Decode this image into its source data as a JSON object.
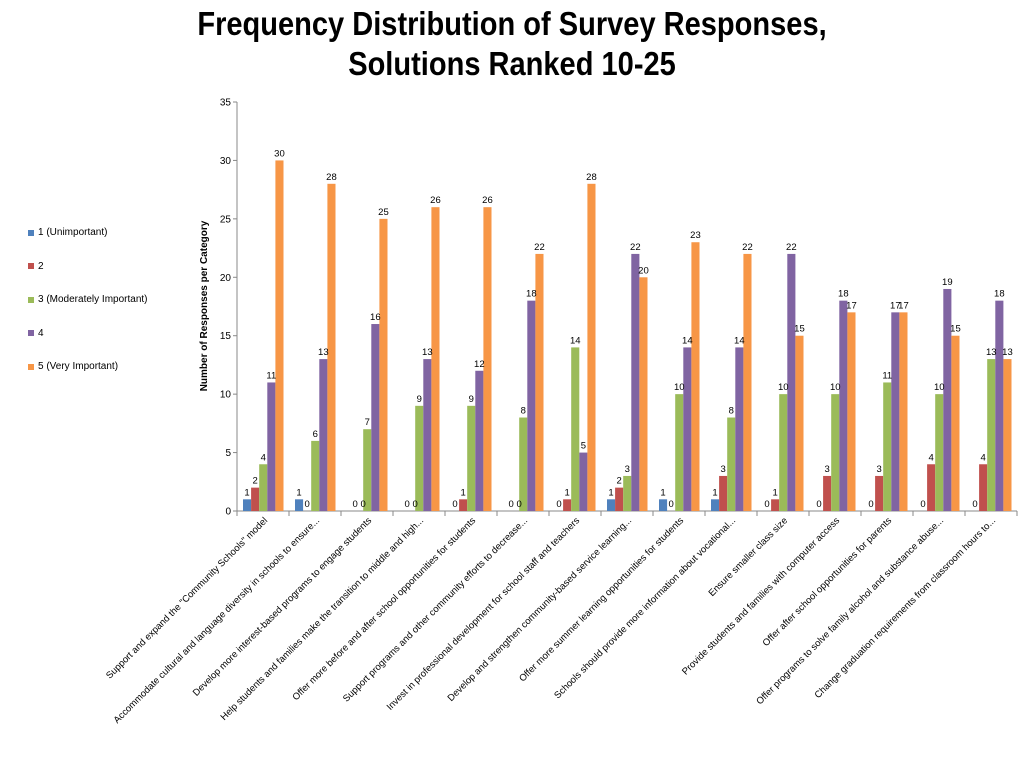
{
  "chart_data": {
    "type": "bar",
    "title": [
      "Frequency Distribution of Survey Responses,",
      "Solutions Ranked 10-25"
    ],
    "xlabel": "",
    "ylabel": "Number of Responses per Category",
    "ylim": [
      0,
      35
    ],
    "yticks": [
      "0",
      "5",
      "10",
      "15",
      "20",
      "25",
      "30",
      "35"
    ],
    "grid": false,
    "legend_position": "left",
    "categories": [
      "Support and expand the \"Community Schools\" model",
      "Accommodate cultural and language diversity in schools to ensure...",
      "Develop more interest-based programs to engage students",
      "Help students and families make the transition to middle and high...",
      "Offer more before and after school opportunities for students",
      "Support programs and other community efforts to decrease...",
      "Invest in professional development for school staff and teachers",
      "Develop and strengthen community-based service learning...",
      "Offer more summer learning opportunities for students",
      "Schools should provide more information about vocational...",
      "Ensure smaller class size",
      "Provide students and families with computer access",
      "Offer after school opportunities for parents",
      "Offer programs to solve family alcohol and substance abuse...",
      "Change graduation requirements from classroom hours to..."
    ],
    "series": [
      {
        "name": "1 (Unimportant)",
        "color": "#4f81bd",
        "values": [
          1,
          1,
          null,
          null,
          null,
          null,
          null,
          1,
          1,
          1,
          null,
          null,
          null,
          null,
          null
        ],
        "labels": [
          "1",
          "1",
          "",
          "",
          "",
          "",
          "",
          "1",
          "1",
          "1",
          "",
          "",
          "",
          "",
          ""
        ]
      },
      {
        "name": "2",
        "color": "#c0504d",
        "values": [
          2,
          0,
          0,
          0,
          1,
          0,
          1,
          2,
          0,
          3,
          1,
          3,
          3,
          4,
          4
        ],
        "labels": [
          "2",
          "0",
          "0 0",
          "0 0",
          "1",
          "0 0",
          "1",
          "2",
          "0",
          "3",
          "1",
          "3",
          "3",
          "4",
          "4"
        ]
      },
      {
        "name": "3 (Moderately Important)",
        "color": "#9bbb59",
        "values": [
          4,
          6,
          7,
          9,
          9,
          8,
          14,
          3,
          10,
          8,
          10,
          10,
          11,
          10,
          13
        ],
        "labels": [
          "4",
          "6",
          "7",
          "9",
          "9",
          "8",
          "14",
          "3",
          "10",
          "8",
          "10",
          "10",
          "11",
          "10",
          "13"
        ]
      },
      {
        "name": "4",
        "color": "#8064a2",
        "values": [
          11,
          13,
          16,
          13,
          12,
          18,
          5,
          22,
          14,
          14,
          22,
          18,
          17,
          19,
          18
        ],
        "labels": [
          "11",
          "13",
          "16",
          "13",
          "12",
          "18",
          "5",
          "22",
          "14",
          "14",
          "22",
          "18",
          "17",
          "19",
          "18"
        ]
      },
      {
        "name": "5 (Very Important)",
        "color": "#f79646",
        "values": [
          30,
          28,
          25,
          26,
          26,
          22,
          28,
          20,
          23,
          22,
          15,
          17,
          17,
          15,
          13
        ],
        "labels": [
          "30",
          "28",
          "25",
          "26",
          "26",
          "22",
          "28",
          "20",
          "23",
          "22",
          "15",
          "17",
          "17",
          "15",
          "13"
        ]
      }
    ],
    "zero_labels": [
      "",
      "",
      "",
      "",
      "0",
      "",
      "0",
      "",
      "",
      "",
      "0",
      "0",
      "0",
      "0",
      "0"
    ]
  }
}
